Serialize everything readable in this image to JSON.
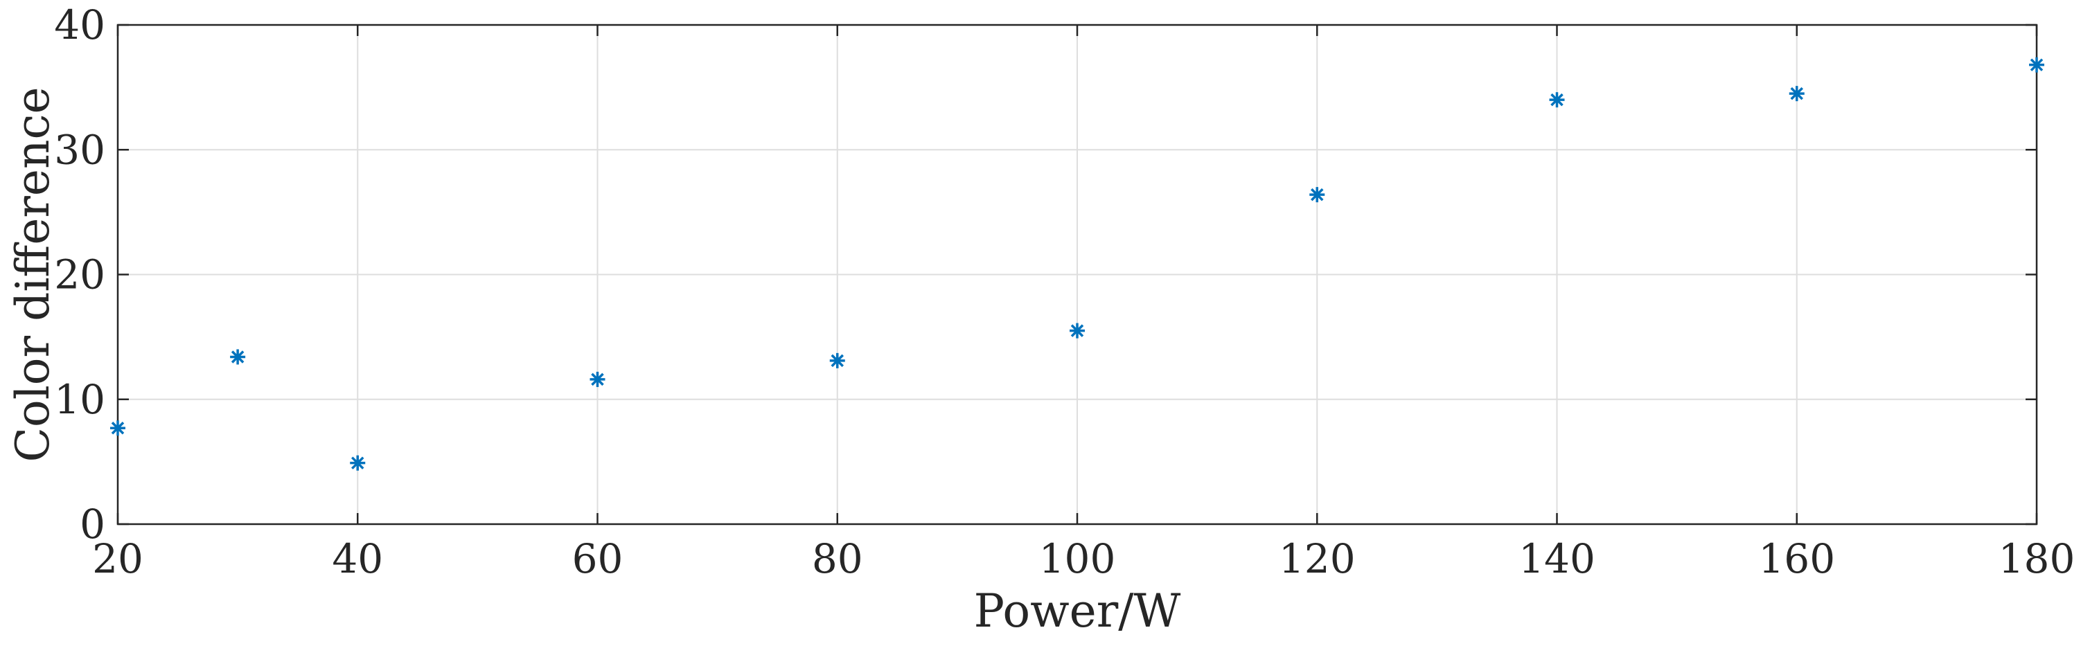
{
  "chart_data": {
    "type": "scatter",
    "title": "",
    "xlabel": "Power/W",
    "ylabel": "Color difference",
    "xlim": [
      20,
      180
    ],
    "ylim": [
      0,
      40
    ],
    "xticks": [
      20,
      40,
      60,
      80,
      100,
      120,
      140,
      160,
      180
    ],
    "yticks": [
      0,
      10,
      20,
      30,
      40
    ],
    "xtick_labels": [
      "20",
      "40",
      "60",
      "80",
      "100",
      "120",
      "140",
      "160",
      "180"
    ],
    "ytick_labels": [
      "0",
      "10",
      "20",
      "30",
      "40"
    ],
    "grid": true,
    "box": true,
    "marker": "asterisk",
    "marker_color": "#0072bd",
    "series": [
      {
        "x": [
          20,
          30,
          40,
          60,
          80,
          100,
          120,
          140,
          160,
          180
        ],
        "y": [
          7.7,
          13.4,
          4.9,
          11.6,
          13.1,
          15.5,
          26.4,
          34.0,
          34.5,
          36.8
        ]
      }
    ]
  }
}
